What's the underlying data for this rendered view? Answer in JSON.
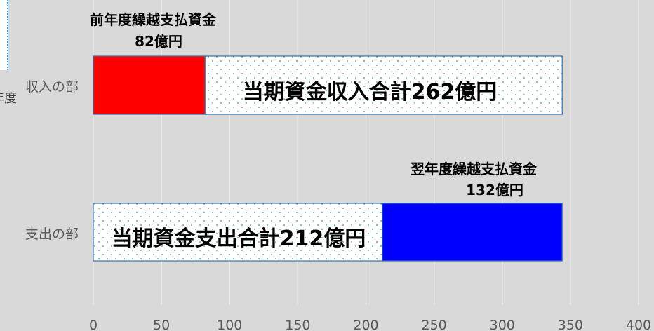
{
  "chart_data": {
    "type": "bar",
    "orientation": "horizontal",
    "stacked": true,
    "categories": [
      "収入の部",
      "支出の部"
    ],
    "series": [
      {
        "name": "前年度繰越支払資金",
        "values": [
          82,
          null
        ],
        "color": "#ff0000"
      },
      {
        "name": "当期資金収入合計",
        "values": [
          262,
          null
        ],
        "color": "#ffffff",
        "pattern": "dots-green"
      },
      {
        "name": "当期資金支出合計",
        "values": [
          null,
          212
        ],
        "color": "#ffffff",
        "pattern": "dots-green"
      },
      {
        "name": "翌年度繰越支払資金",
        "values": [
          null,
          132
        ],
        "color": "#0000ff"
      }
    ],
    "xlim": [
      0,
      400
    ],
    "xticks": [
      "0",
      "50",
      "100",
      "150",
      "200",
      "250",
      "300",
      "350",
      "400"
    ],
    "grid": true,
    "annotations": [
      {
        "line1": "前年度繰越支払資金",
        "line2": "82億円"
      },
      {
        "text": "当期資金収入合計262億円"
      },
      {
        "line1": "翌年度繰越支払資金",
        "line2": "132億円"
      },
      {
        "text": "当期資金支出合計212億円"
      }
    ],
    "cropped_left_label": "年度"
  }
}
